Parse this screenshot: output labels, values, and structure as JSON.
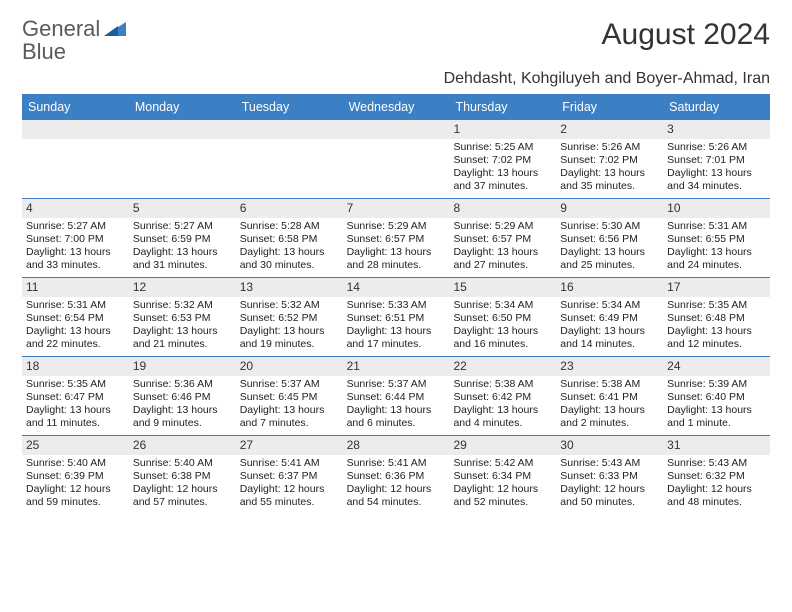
{
  "logo": {
    "part1": "General",
    "part2": "Blue"
  },
  "title": "August 2024",
  "location": "Dehdasht, Kohgiluyeh and Boyer-Ahmad, Iran",
  "colors": {
    "header_bg": "#3b7fc4",
    "header_text": "#ffffff",
    "daynum_bg": "#ececec",
    "text": "#222222",
    "divider": "#3b7fc4"
  },
  "typography": {
    "title_fontsize": 30,
    "location_fontsize": 16,
    "weekday_fontsize": 12.5,
    "cell_fontsize": 10.5
  },
  "weekdays": [
    "Sunday",
    "Monday",
    "Tuesday",
    "Wednesday",
    "Thursday",
    "Friday",
    "Saturday"
  ],
  "weeks": [
    [
      {
        "blank": true
      },
      {
        "blank": true
      },
      {
        "blank": true
      },
      {
        "blank": true
      },
      {
        "n": "1",
        "sunrise": "5:25 AM",
        "sunset": "7:02 PM",
        "daylight": "13 hours and 37 minutes."
      },
      {
        "n": "2",
        "sunrise": "5:26 AM",
        "sunset": "7:02 PM",
        "daylight": "13 hours and 35 minutes."
      },
      {
        "n": "3",
        "sunrise": "5:26 AM",
        "sunset": "7:01 PM",
        "daylight": "13 hours and 34 minutes."
      }
    ],
    [
      {
        "n": "4",
        "sunrise": "5:27 AM",
        "sunset": "7:00 PM",
        "daylight": "13 hours and 33 minutes."
      },
      {
        "n": "5",
        "sunrise": "5:27 AM",
        "sunset": "6:59 PM",
        "daylight": "13 hours and 31 minutes."
      },
      {
        "n": "6",
        "sunrise": "5:28 AM",
        "sunset": "6:58 PM",
        "daylight": "13 hours and 30 minutes."
      },
      {
        "n": "7",
        "sunrise": "5:29 AM",
        "sunset": "6:57 PM",
        "daylight": "13 hours and 28 minutes."
      },
      {
        "n": "8",
        "sunrise": "5:29 AM",
        "sunset": "6:57 PM",
        "daylight": "13 hours and 27 minutes."
      },
      {
        "n": "9",
        "sunrise": "5:30 AM",
        "sunset": "6:56 PM",
        "daylight": "13 hours and 25 minutes."
      },
      {
        "n": "10",
        "sunrise": "5:31 AM",
        "sunset": "6:55 PM",
        "daylight": "13 hours and 24 minutes."
      }
    ],
    [
      {
        "n": "11",
        "sunrise": "5:31 AM",
        "sunset": "6:54 PM",
        "daylight": "13 hours and 22 minutes."
      },
      {
        "n": "12",
        "sunrise": "5:32 AM",
        "sunset": "6:53 PM",
        "daylight": "13 hours and 21 minutes."
      },
      {
        "n": "13",
        "sunrise": "5:32 AM",
        "sunset": "6:52 PM",
        "daylight": "13 hours and 19 minutes."
      },
      {
        "n": "14",
        "sunrise": "5:33 AM",
        "sunset": "6:51 PM",
        "daylight": "13 hours and 17 minutes."
      },
      {
        "n": "15",
        "sunrise": "5:34 AM",
        "sunset": "6:50 PM",
        "daylight": "13 hours and 16 minutes."
      },
      {
        "n": "16",
        "sunrise": "5:34 AM",
        "sunset": "6:49 PM",
        "daylight": "13 hours and 14 minutes."
      },
      {
        "n": "17",
        "sunrise": "5:35 AM",
        "sunset": "6:48 PM",
        "daylight": "13 hours and 12 minutes."
      }
    ],
    [
      {
        "n": "18",
        "sunrise": "5:35 AM",
        "sunset": "6:47 PM",
        "daylight": "13 hours and 11 minutes."
      },
      {
        "n": "19",
        "sunrise": "5:36 AM",
        "sunset": "6:46 PM",
        "daylight": "13 hours and 9 minutes."
      },
      {
        "n": "20",
        "sunrise": "5:37 AM",
        "sunset": "6:45 PM",
        "daylight": "13 hours and 7 minutes."
      },
      {
        "n": "21",
        "sunrise": "5:37 AM",
        "sunset": "6:44 PM",
        "daylight": "13 hours and 6 minutes."
      },
      {
        "n": "22",
        "sunrise": "5:38 AM",
        "sunset": "6:42 PM",
        "daylight": "13 hours and 4 minutes."
      },
      {
        "n": "23",
        "sunrise": "5:38 AM",
        "sunset": "6:41 PM",
        "daylight": "13 hours and 2 minutes."
      },
      {
        "n": "24",
        "sunrise": "5:39 AM",
        "sunset": "6:40 PM",
        "daylight": "13 hours and 1 minute."
      }
    ],
    [
      {
        "n": "25",
        "sunrise": "5:40 AM",
        "sunset": "6:39 PM",
        "daylight": "12 hours and 59 minutes."
      },
      {
        "n": "26",
        "sunrise": "5:40 AM",
        "sunset": "6:38 PM",
        "daylight": "12 hours and 57 minutes."
      },
      {
        "n": "27",
        "sunrise": "5:41 AM",
        "sunset": "6:37 PM",
        "daylight": "12 hours and 55 minutes."
      },
      {
        "n": "28",
        "sunrise": "5:41 AM",
        "sunset": "6:36 PM",
        "daylight": "12 hours and 54 minutes."
      },
      {
        "n": "29",
        "sunrise": "5:42 AM",
        "sunset": "6:34 PM",
        "daylight": "12 hours and 52 minutes."
      },
      {
        "n": "30",
        "sunrise": "5:43 AM",
        "sunset": "6:33 PM",
        "daylight": "12 hours and 50 minutes."
      },
      {
        "n": "31",
        "sunrise": "5:43 AM",
        "sunset": "6:32 PM",
        "daylight": "12 hours and 48 minutes."
      }
    ]
  ]
}
